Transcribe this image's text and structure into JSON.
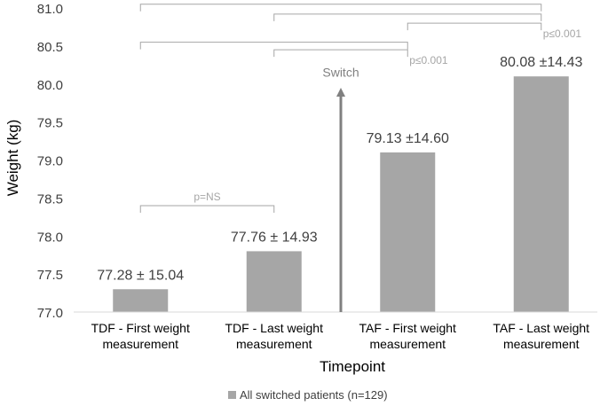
{
  "chart_data": {
    "type": "bar",
    "title": "",
    "xlabel": "Timepoint",
    "ylabel": "Weight (kg)",
    "ylim": [
      77.0,
      81.0
    ],
    "yticks": [
      "77.0",
      "77.5",
      "78.0",
      "78.5",
      "79.0",
      "79.5",
      "80.0",
      "80.5",
      "81.0"
    ],
    "grid": false,
    "categories": [
      [
        "TDF - First weight",
        "measurement"
      ],
      [
        "TDF - Last weight",
        "measurement"
      ],
      [
        "TAF - First weight",
        "measurement"
      ],
      [
        "TAF - Last weight",
        "measurement"
      ]
    ],
    "series": [
      {
        "name": "All switched patients (n=129)",
        "values": [
          77.3,
          77.8,
          79.1,
          80.1
        ],
        "labels": [
          "77.28 ± 15.04",
          "77.76 ± 14.93",
          "79.13 ±14.60",
          "80.08 ±14.43"
        ],
        "color": "#a6a6a6"
      }
    ],
    "legend": "bottom",
    "annotations": {
      "switch_label": "Switch",
      "switch_arrow_between": [
        1,
        2
      ],
      "brackets": [
        {
          "from": 0,
          "to": 1,
          "level": 78.4,
          "label": "p=NS"
        },
        {
          "from": 1,
          "to": 2,
          "level": 80.45,
          "label": "p≤0.001"
        },
        {
          "from": 0,
          "to": 2,
          "level": 80.55,
          "label": ""
        },
        {
          "from": 2,
          "to": 3,
          "level": 80.8,
          "label": "p≤0.001"
        },
        {
          "from": 1,
          "to": 3,
          "level": 80.92,
          "label": ""
        },
        {
          "from": 0,
          "to": 3,
          "level": 81.05,
          "label": ""
        }
      ]
    },
    "colors": {
      "bar": "#a6a6a6",
      "arrow": "#808080",
      "bracket": "#a6a6a6",
      "text": "#404040",
      "pvalue": "#a6a6a6"
    }
  }
}
